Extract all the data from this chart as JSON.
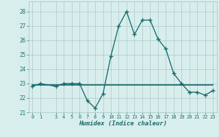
{
  "x": [
    0,
    1,
    3,
    4,
    5,
    6,
    7,
    8,
    9,
    10,
    11,
    12,
    13,
    14,
    15,
    16,
    17,
    18,
    19,
    20,
    21,
    22,
    23
  ],
  "y": [
    22.8,
    23.0,
    22.8,
    23.0,
    23.0,
    23.0,
    21.8,
    21.3,
    22.3,
    24.9,
    27.0,
    28.0,
    26.4,
    27.4,
    27.4,
    26.1,
    25.4,
    23.7,
    23.0,
    22.4,
    22.4,
    22.2,
    22.5
  ],
  "flat_y": 22.9,
  "line_color": "#1a6b6b",
  "bg_color": "#d8eeed",
  "grid_color": "#a8c8c8",
  "xlabel": "Humidex (Indice chaleur)",
  "ylim": [
    21.0,
    28.7
  ],
  "xlim": [
    -0.5,
    23.5
  ],
  "yticks": [
    21,
    22,
    23,
    24,
    25,
    26,
    27,
    28
  ],
  "xticks": [
    0,
    1,
    3,
    4,
    5,
    6,
    7,
    8,
    9,
    10,
    11,
    12,
    13,
    14,
    15,
    16,
    17,
    18,
    19,
    20,
    21,
    22,
    23
  ],
  "markersize": 4,
  "linewidth": 1.0,
  "flat_linewidth": 1.3
}
